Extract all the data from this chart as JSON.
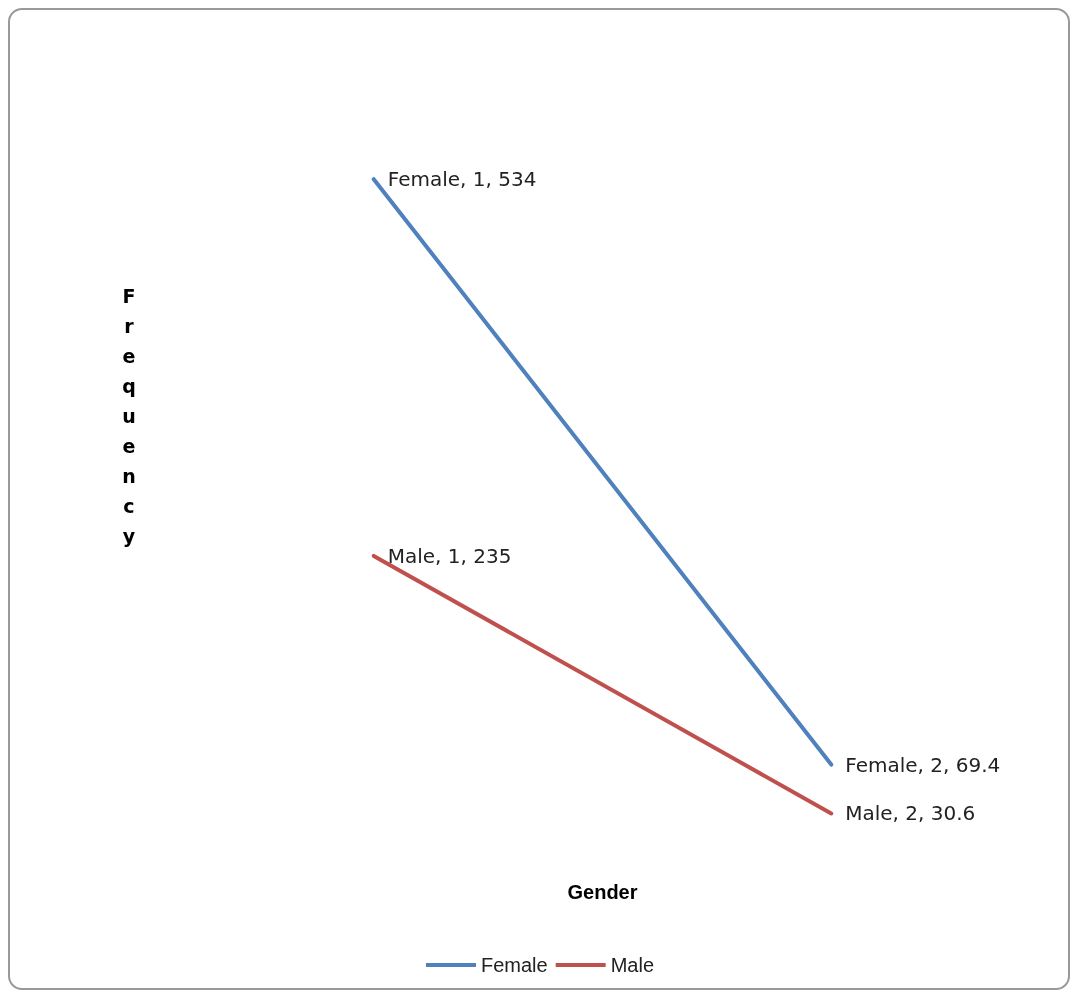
{
  "chart_data": {
    "type": "line",
    "xlabel": "Gender",
    "ylabel": "Frequency",
    "categories": [
      null,
      null
    ],
    "series": [
      {
        "name": "Female",
        "color": "#4f81bd",
        "values": [
          534,
          69.4
        ],
        "value_labels": [
          "Female, 1, 534",
          "Female, 2, 69.4"
        ]
      },
      {
        "name": "Male",
        "color": "#c0504d",
        "values": [
          235,
          30.6
        ],
        "value_labels": [
          "Male, 1, 235",
          "Male, 2, 30.6"
        ]
      }
    ],
    "tick_labels": false,
    "grid": false,
    "legend": "bottom",
    "marker": "none",
    "line_style": "solid"
  }
}
